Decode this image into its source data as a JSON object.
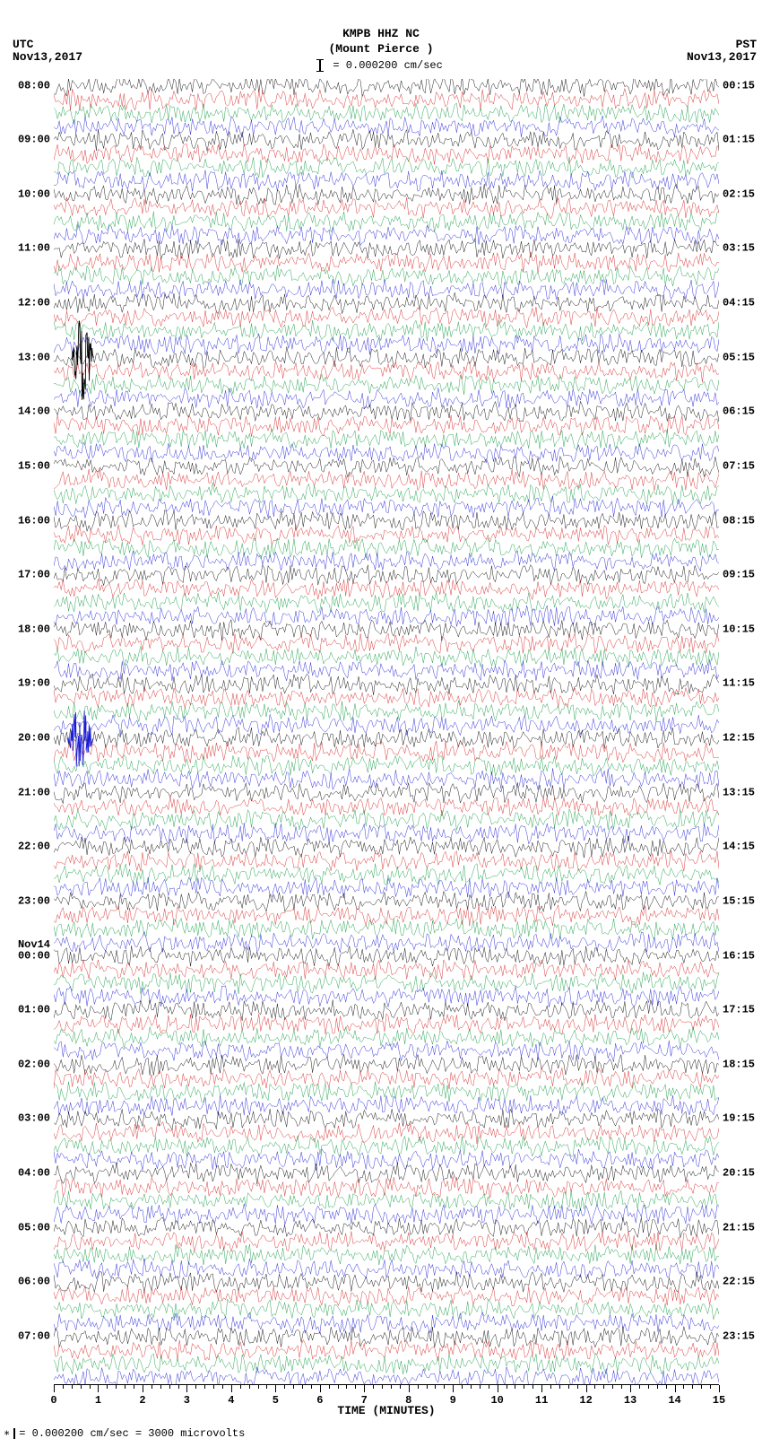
{
  "header": {
    "title": "KMPB HHZ NC",
    "subtitle": "(Mount Pierce )",
    "scale_label": "= 0.000200 cm/sec"
  },
  "tz_left": "UTC",
  "tz_right": "PST",
  "date_left": "Nov13,2017",
  "date_right": "Nov13,2017",
  "mid_date_label": "Nov14",
  "chart": {
    "type": "helicorder",
    "background_color": "#ffffff",
    "trace_colors": [
      "#000000",
      "#d52020",
      "#0f9940",
      "#1a1ad6"
    ],
    "line_width": 0.6,
    "amplitude_noise": 1.1,
    "num_traces": 96,
    "minutes_per_trace": 15,
    "rows_per_hour": 4,
    "left_hours": [
      "08:00",
      "09:00",
      "10:00",
      "11:00",
      "12:00",
      "13:00",
      "14:00",
      "15:00",
      "16:00",
      "17:00",
      "18:00",
      "19:00",
      "20:00",
      "21:00",
      "22:00",
      "23:00",
      "00:00",
      "01:00",
      "02:00",
      "03:00",
      "04:00",
      "05:00",
      "06:00",
      "07:00"
    ],
    "right_hours": [
      "00:15",
      "01:15",
      "02:15",
      "03:15",
      "04:15",
      "05:15",
      "06:15",
      "07:15",
      "08:15",
      "09:15",
      "10:15",
      "11:15",
      "12:15",
      "13:15",
      "14:15",
      "15:15",
      "16:15",
      "17:15",
      "18:15",
      "19:15",
      "20:15",
      "21:15",
      "22:15",
      "23:15"
    ],
    "mid_date_row_index": 16,
    "events": [
      {
        "trace_index": 20,
        "minute": 0.4,
        "width": 0.5,
        "amp": 3.2,
        "color": "#000000"
      },
      {
        "trace_index": 48,
        "minute": 0.3,
        "width": 0.6,
        "amp": 2.4,
        "color": "#1a1ad6"
      }
    ],
    "x_axis": {
      "min": 0,
      "max": 15,
      "major_step": 1,
      "minor_step": 0.2,
      "tick_labels": [
        "0",
        "1",
        "2",
        "3",
        "4",
        "5",
        "6",
        "7",
        "8",
        "9",
        "10",
        "11",
        "12",
        "13",
        "14",
        "15"
      ],
      "title": "TIME (MINUTES)",
      "title_fontsize": 13,
      "tick_fontsize": 12
    }
  },
  "footer": "= 0.000200 cm/sec =   3000 microvolts"
}
